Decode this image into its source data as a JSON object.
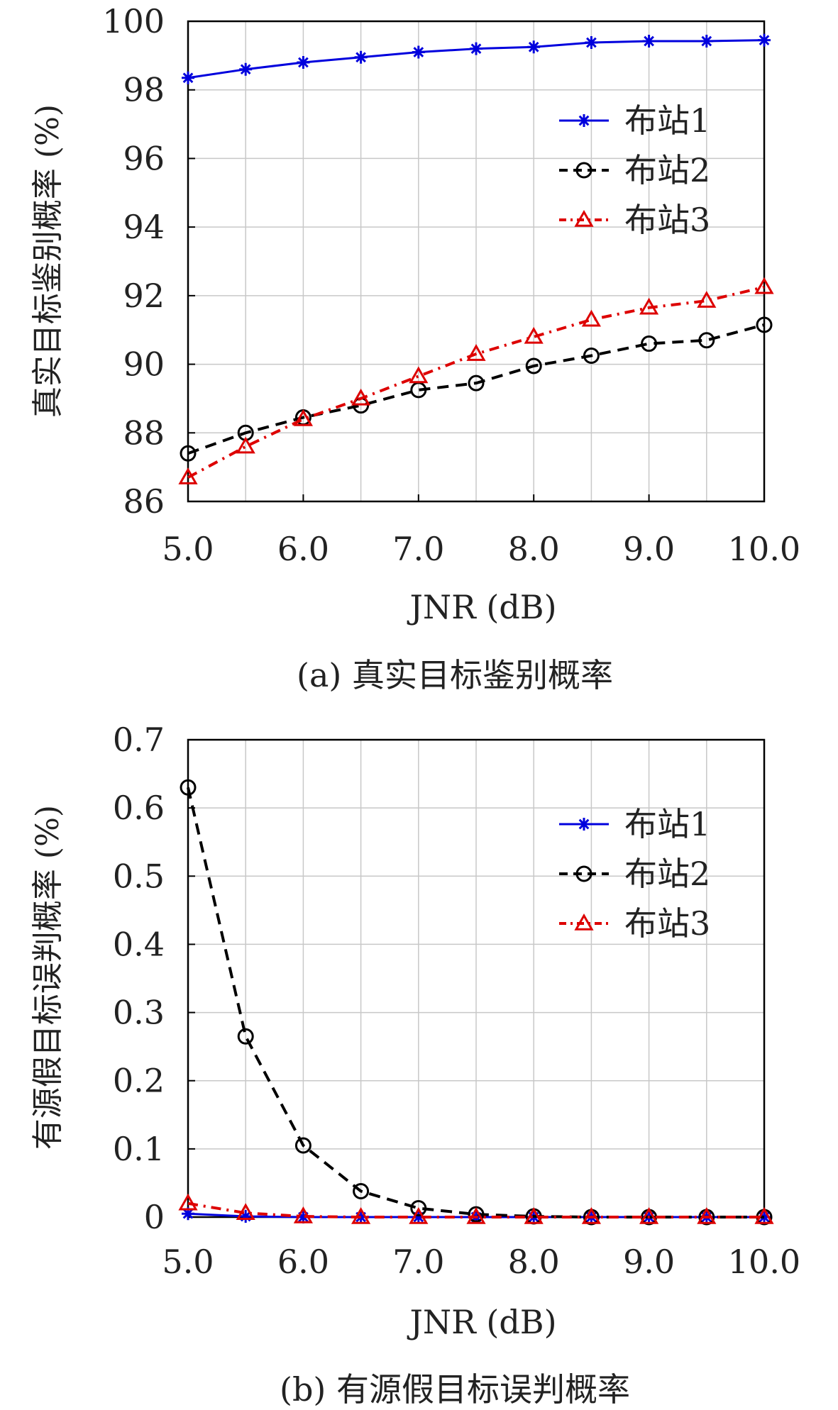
{
  "chart_data": [
    {
      "type": "line",
      "caption": "(a) 真实目标鉴别概率",
      "xlabel": "JNR (dB)",
      "ylabel": "真实目标鉴别概率 (%)",
      "x": [
        5.0,
        5.5,
        6.0,
        6.5,
        7.0,
        7.5,
        8.0,
        8.5,
        9.0,
        9.5,
        10.0
      ],
      "xticks": [
        "5.0",
        "6.0",
        "7.0",
        "8.0",
        "9.0",
        "10.0"
      ],
      "xtick_values": [
        5,
        6,
        7,
        8,
        9,
        10
      ],
      "xlim": [
        5,
        10
      ],
      "yticks": [
        "86",
        "88",
        "90",
        "92",
        "94",
        "96",
        "98",
        "100"
      ],
      "ytick_values": [
        86,
        88,
        90,
        92,
        94,
        96,
        98,
        100
      ],
      "ylim": [
        86,
        100
      ],
      "grid": true,
      "legend_position": "top-right",
      "series": [
        {
          "name": "布站1",
          "color": "#0000dd",
          "marker": "star",
          "dash": "solid",
          "values": [
            98.35,
            98.6,
            98.8,
            98.95,
            99.1,
            99.2,
            99.25,
            99.38,
            99.42,
            99.42,
            99.45
          ]
        },
        {
          "name": "布站2",
          "color": "#000000",
          "marker": "circle",
          "dash": "dashed",
          "values": [
            87.4,
            88.0,
            88.45,
            88.8,
            89.25,
            89.45,
            89.95,
            90.25,
            90.6,
            90.7,
            91.15
          ]
        },
        {
          "name": "布站3",
          "color": "#dd0000",
          "marker": "triangle",
          "dash": "dashdot",
          "values": [
            86.7,
            87.6,
            88.4,
            89.0,
            89.65,
            90.3,
            90.8,
            91.3,
            91.65,
            91.85,
            92.25
          ]
        }
      ]
    },
    {
      "type": "line",
      "caption": "(b) 有源假目标误判概率",
      "xlabel": "JNR (dB)",
      "ylabel": "有源假目标误判概率 (%)",
      "x": [
        5.0,
        5.5,
        6.0,
        6.5,
        7.0,
        7.5,
        8.0,
        8.5,
        9.0,
        9.5,
        10.0
      ],
      "xticks": [
        "5.0",
        "6.0",
        "7.0",
        "8.0",
        "9.0",
        "10.0"
      ],
      "xtick_values": [
        5,
        6,
        7,
        8,
        9,
        10
      ],
      "xlim": [
        5,
        10
      ],
      "yticks": [
        "0",
        "0.1",
        "0.2",
        "0.3",
        "0.4",
        "0.5",
        "0.6",
        "0.7"
      ],
      "ytick_values": [
        0,
        0.1,
        0.2,
        0.3,
        0.4,
        0.5,
        0.6,
        0.7
      ],
      "ylim": [
        0,
        0.7
      ],
      "grid": true,
      "legend_position": "top-right",
      "series": [
        {
          "name": "布站1",
          "color": "#0000dd",
          "marker": "star",
          "dash": "solid",
          "values": [
            0.005,
            0.001,
            0.0,
            0.0,
            0.0,
            0.0,
            0.0,
            0.0,
            0.0,
            0.0,
            0.0
          ]
        },
        {
          "name": "布站2",
          "color": "#000000",
          "marker": "circle",
          "dash": "dashed",
          "values": [
            0.63,
            0.265,
            0.105,
            0.038,
            0.013,
            0.004,
            0.001,
            0.0,
            0.0,
            0.0,
            0.0
          ]
        },
        {
          "name": "布站3",
          "color": "#dd0000",
          "marker": "triangle",
          "dash": "dashdot",
          "values": [
            0.02,
            0.006,
            0.001,
            0.0,
            0.0,
            0.0,
            0.0,
            0.0,
            0.0,
            0.0,
            0.0
          ]
        }
      ]
    }
  ]
}
